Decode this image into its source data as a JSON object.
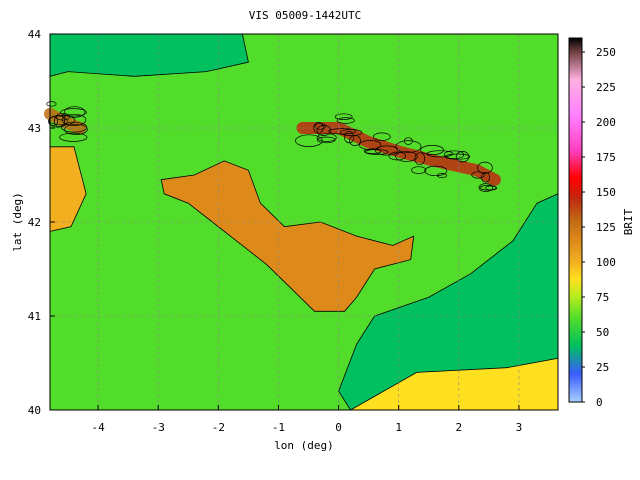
{
  "chart_data": {
    "type": "heatmap",
    "title": "VIS 05009-1442UTC",
    "xlabel": "lon (deg)",
    "ylabel": "lat (deg)",
    "colorbar_label": "BRIT",
    "xlim": [
      -4.8,
      3.65
    ],
    "ylim": [
      40,
      44
    ],
    "x_ticks": [
      -4,
      -3,
      -2,
      -1,
      0,
      1,
      2,
      3
    ],
    "y_ticks": [
      40,
      41,
      42,
      43,
      44
    ],
    "colorbar_range": [
      0,
      260
    ],
    "colorbar_ticks": [
      0,
      25,
      50,
      75,
      100,
      125,
      150,
      175,
      200,
      225,
      250
    ],
    "grid": true,
    "contours": true,
    "colormap_stops": [
      {
        "v": 0,
        "color": "#a8d0ff"
      },
      {
        "v": 20,
        "color": "#3b5bff"
      },
      {
        "v": 40,
        "color": "#00c060"
      },
      {
        "v": 60,
        "color": "#52dd2a"
      },
      {
        "v": 75,
        "color": "#b4ec1e"
      },
      {
        "v": 88,
        "color": "#ffe020"
      },
      {
        "v": 100,
        "color": "#f2b020"
      },
      {
        "v": 115,
        "color": "#de8a1a"
      },
      {
        "v": 130,
        "color": "#c06a14"
      },
      {
        "v": 145,
        "color": "#c02a10"
      },
      {
        "v": 160,
        "color": "#ff0000"
      },
      {
        "v": 180,
        "color": "#ff40c0"
      },
      {
        "v": 205,
        "color": "#ff80ff"
      },
      {
        "v": 230,
        "color": "#ffb0e0"
      },
      {
        "v": 250,
        "color": "#704040"
      },
      {
        "v": 260,
        "color": "#000000"
      }
    ],
    "regions": [
      {
        "name": "ebro-basin",
        "brit": 120,
        "polygon": [
          [
            -2.95,
            42.45
          ],
          [
            -2.4,
            42.5
          ],
          [
            -1.9,
            42.65
          ],
          [
            -1.5,
            42.55
          ],
          [
            -1.3,
            42.2
          ],
          [
            -0.9,
            41.95
          ],
          [
            -0.3,
            42.0
          ],
          [
            0.3,
            41.85
          ],
          [
            0.9,
            41.75
          ],
          [
            1.25,
            41.85
          ],
          [
            1.2,
            41.6
          ],
          [
            0.6,
            41.5
          ],
          [
            0.3,
            41.2
          ],
          [
            0.1,
            41.05
          ],
          [
            -0.4,
            41.05
          ],
          [
            -0.8,
            41.3
          ],
          [
            -1.2,
            41.55
          ],
          [
            -1.7,
            41.8
          ],
          [
            -2.1,
            42.0
          ],
          [
            -2.5,
            42.2
          ],
          [
            -2.9,
            42.3
          ]
        ]
      },
      {
        "name": "west-meseta",
        "brit": 100,
        "polygon": [
          [
            -4.8,
            42.8
          ],
          [
            -4.4,
            42.8
          ],
          [
            -4.2,
            42.3
          ],
          [
            -4.45,
            41.95
          ],
          [
            -4.8,
            41.9
          ]
        ]
      },
      {
        "name": "east-lowland",
        "brit": 95,
        "polygon": [
          [
            0.5,
            40.25
          ],
          [
            1.5,
            40.9
          ],
          [
            2.0,
            40.7
          ],
          [
            2.5,
            40.9
          ],
          [
            3.0,
            41.0
          ],
          [
            3.65,
            41.1
          ],
          [
            3.65,
            40.0
          ],
          [
            0.2,
            40.0
          ]
        ]
      },
      {
        "name": "sea-north",
        "brit": 48,
        "polygon": [
          [
            -4.8,
            44
          ],
          [
            -1.6,
            44
          ],
          [
            -1.5,
            43.7
          ],
          [
            -2.2,
            43.6
          ],
          [
            -3.4,
            43.55
          ],
          [
            -4.5,
            43.6
          ],
          [
            -4.8,
            43.55
          ]
        ]
      },
      {
        "name": "sea-east",
        "brit": 48,
        "polygon": [
          [
            0.6,
            41.0
          ],
          [
            1.5,
            41.2
          ],
          [
            2.2,
            41.45
          ],
          [
            2.9,
            41.8
          ],
          [
            3.3,
            42.2
          ],
          [
            3.65,
            42.3
          ],
          [
            3.65,
            40.55
          ],
          [
            2.8,
            40.45
          ],
          [
            1.3,
            40.4
          ],
          [
            0.2,
            40.0
          ],
          [
            0.0,
            40.2
          ],
          [
            0.3,
            40.7
          ]
        ]
      }
    ],
    "mountain_bands": [
      {
        "name": "pyrenees",
        "brit": 150,
        "points": [
          [
            -0.6,
            43.0
          ],
          [
            0.0,
            43.0
          ],
          [
            0.5,
            42.85
          ],
          [
            1.0,
            42.75
          ],
          [
            1.6,
            42.65
          ],
          [
            2.3,
            42.55
          ],
          [
            2.6,
            42.45
          ]
        ]
      },
      {
        "name": "cantabrian",
        "brit": 140,
        "points": [
          [
            -4.8,
            43.15
          ],
          [
            -4.5,
            43.05
          ],
          [
            -4.3,
            43.0
          ]
        ]
      }
    ]
  }
}
